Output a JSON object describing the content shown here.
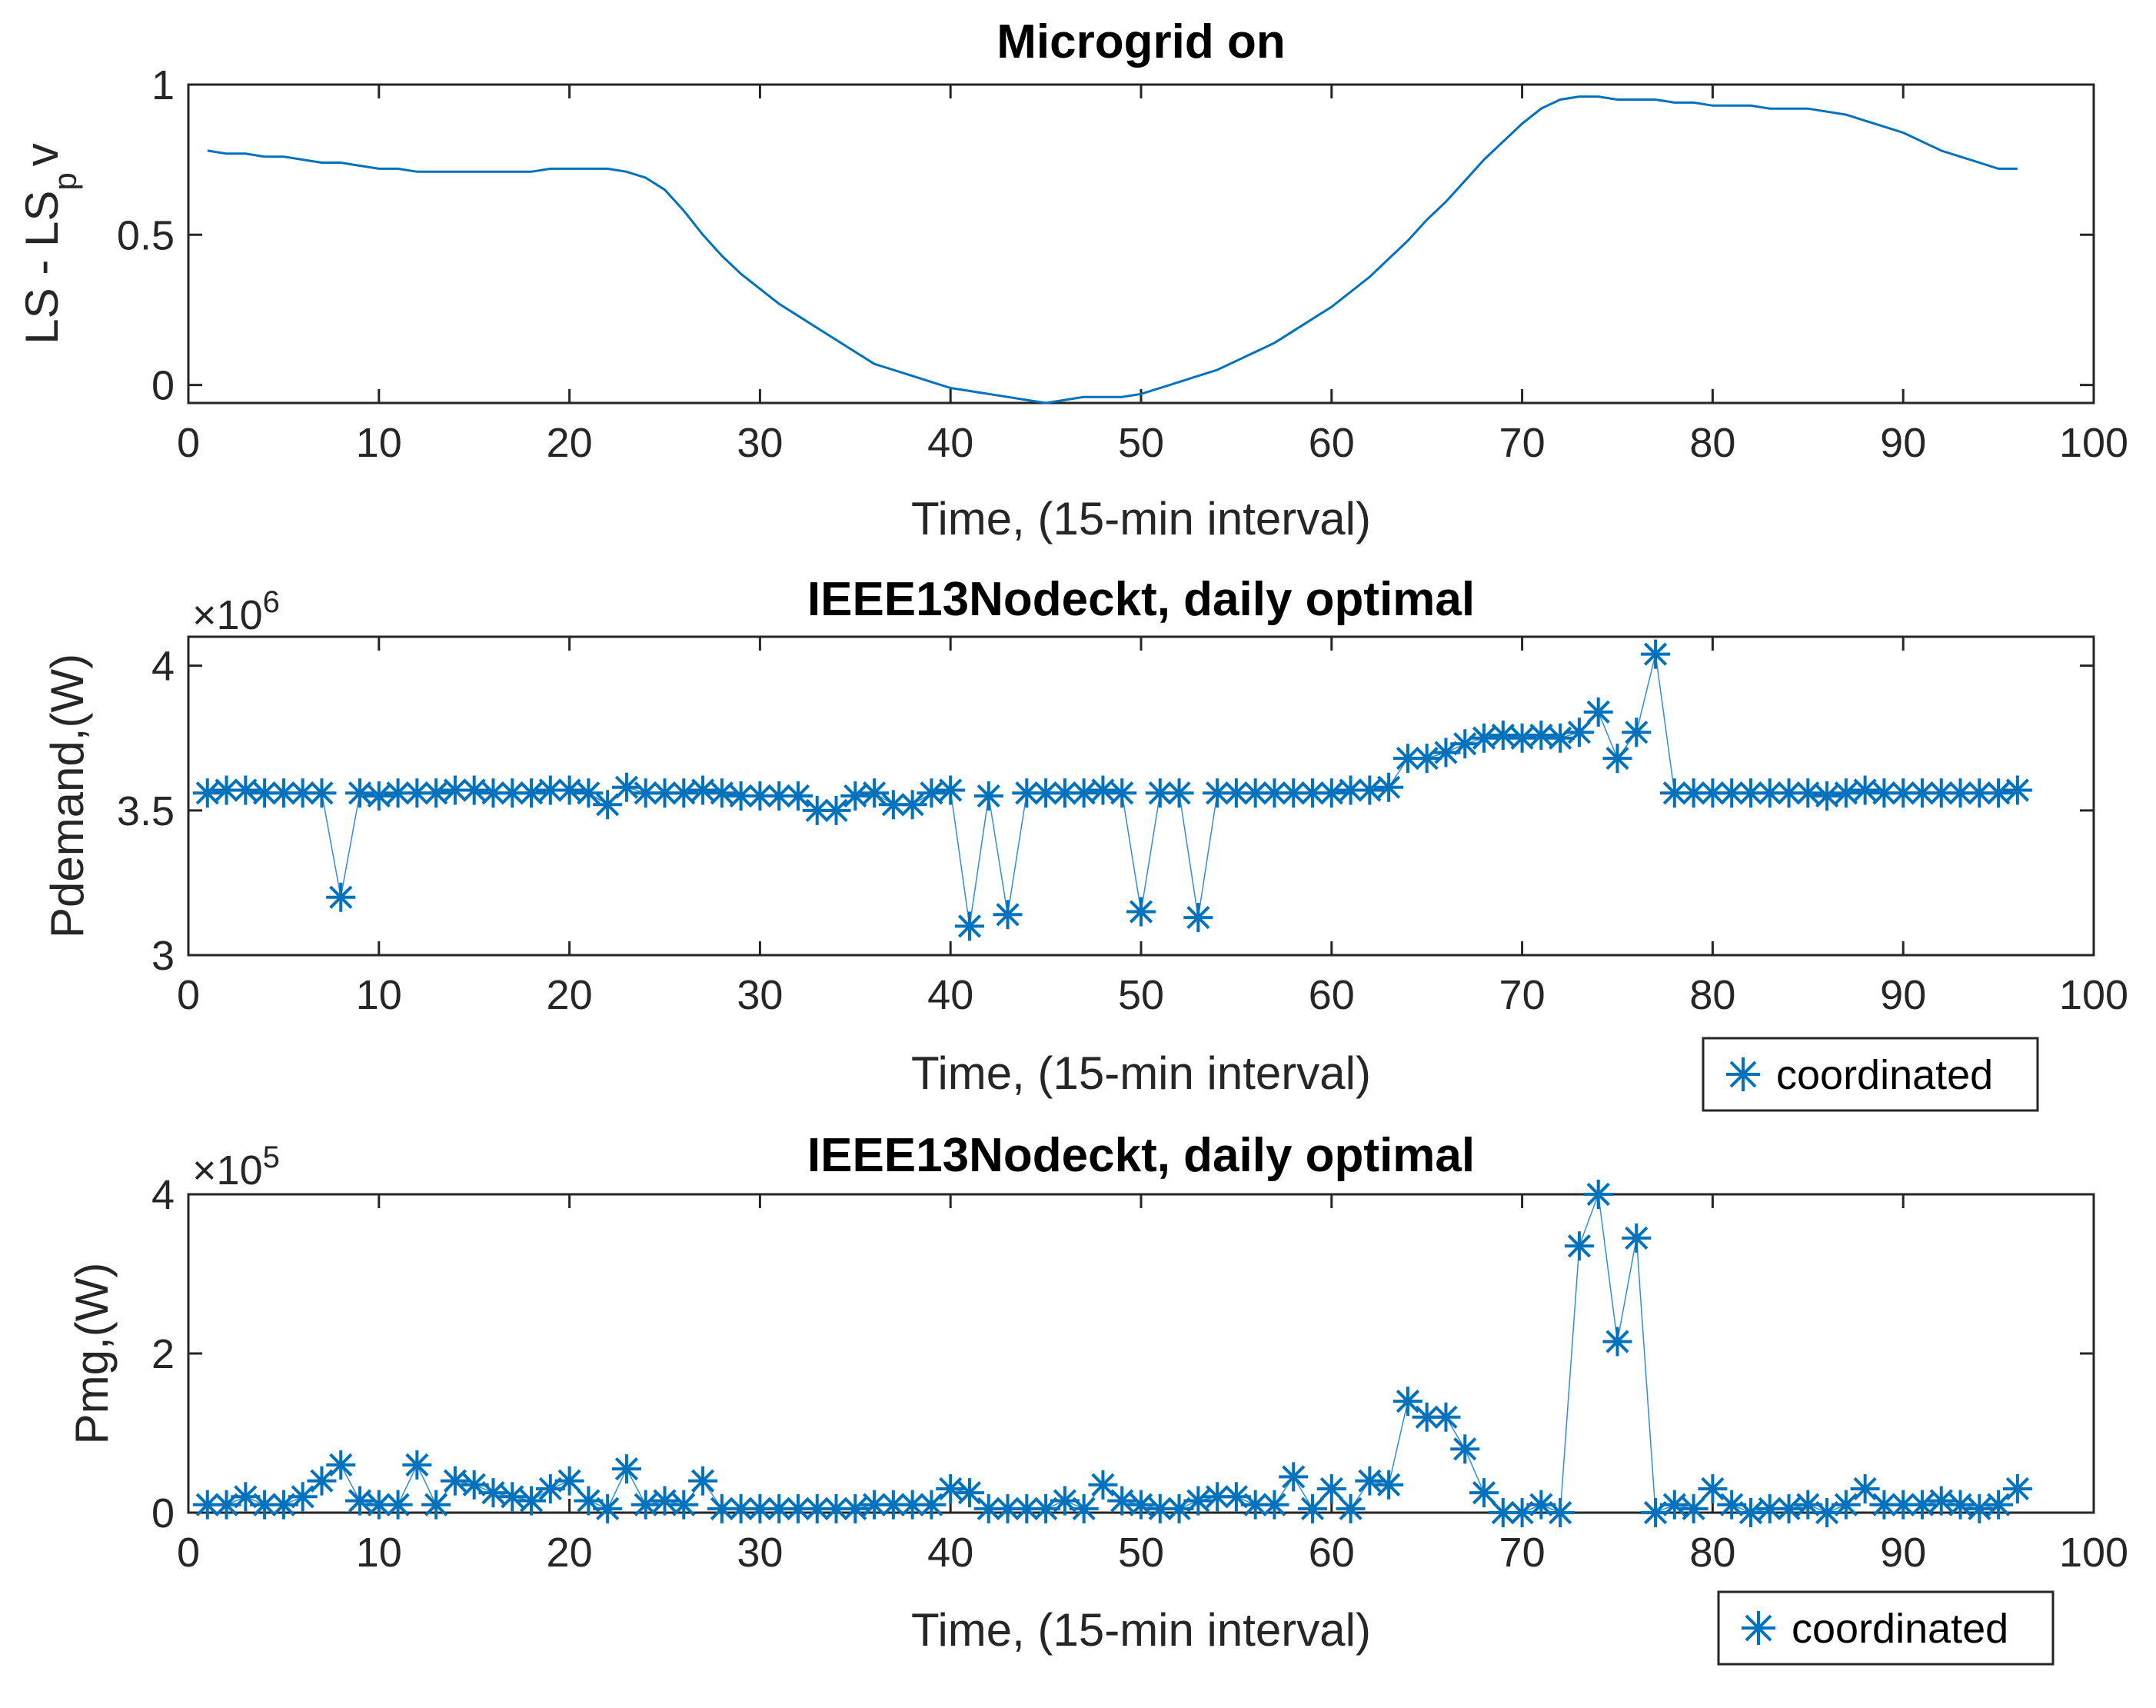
{
  "colors": {
    "series": "#0072BD",
    "axis": "#262626"
  },
  "chart_data": [
    {
      "type": "line",
      "title": "Microgrid on",
      "xlabel": "Time, (15-min interval)",
      "ylabel": "LS - LS",
      "ylabel_sub": "p",
      "ylabel_tail": "v",
      "xlim": [
        0,
        100
      ],
      "ylim": [
        -0.06,
        1
      ],
      "xticks": [
        0,
        10,
        20,
        30,
        40,
        50,
        60,
        70,
        80,
        90,
        100
      ],
      "yticks": [
        0,
        0.5,
        1
      ],
      "xtick_labels": [
        "0",
        "10",
        "20",
        "30",
        "40",
        "50",
        "60",
        "70",
        "80",
        "90",
        "100"
      ],
      "ytick_labels": [
        "0",
        "0.5",
        "1"
      ],
      "series": [
        {
          "name": "LS-LSpv",
          "x": [
            1,
            2,
            3,
            4,
            5,
            6,
            7,
            8,
            9,
            10,
            11,
            12,
            13,
            14,
            15,
            16,
            17,
            18,
            19,
            20,
            21,
            22,
            23,
            24,
            25,
            26,
            27,
            28,
            29,
            30,
            31,
            32,
            33,
            34,
            35,
            36,
            37,
            38,
            39,
            40,
            41,
            42,
            43,
            44,
            45,
            46,
            47,
            48,
            49,
            50,
            51,
            52,
            53,
            54,
            55,
            56,
            57,
            58,
            59,
            60,
            61,
            62,
            63,
            64,
            65,
            66,
            67,
            68,
            69,
            70,
            71,
            72,
            73,
            74,
            75,
            76,
            77,
            78,
            79,
            80,
            81,
            82,
            83,
            84,
            85,
            86,
            87,
            88,
            89,
            90,
            91,
            92,
            93,
            94,
            95,
            96
          ],
          "y": [
            0.78,
            0.77,
            0.77,
            0.76,
            0.76,
            0.75,
            0.74,
            0.74,
            0.73,
            0.72,
            0.72,
            0.71,
            0.71,
            0.71,
            0.71,
            0.71,
            0.71,
            0.71,
            0.72,
            0.72,
            0.72,
            0.72,
            0.71,
            0.69,
            0.65,
            0.58,
            0.5,
            0.43,
            0.37,
            0.32,
            0.27,
            0.23,
            0.19,
            0.15,
            0.11,
            0.07,
            0.05,
            0.03,
            0.01,
            -0.01,
            -0.02,
            -0.03,
            -0.04,
            -0.05,
            -0.06,
            -0.05,
            -0.04,
            -0.04,
            -0.04,
            -0.03,
            -0.01,
            0.01,
            0.03,
            0.05,
            0.08,
            0.11,
            0.14,
            0.18,
            0.22,
            0.26,
            0.31,
            0.36,
            0.42,
            0.48,
            0.55,
            0.61,
            0.68,
            0.75,
            0.81,
            0.87,
            0.92,
            0.95,
            0.96,
            0.96,
            0.95,
            0.95,
            0.95,
            0.94,
            0.94,
            0.93,
            0.93,
            0.93,
            0.92,
            0.92,
            0.92,
            0.91,
            0.9,
            0.88,
            0.86,
            0.84,
            0.81,
            0.78,
            0.76,
            0.74,
            0.72,
            0.72
          ]
        }
      ]
    },
    {
      "type": "scatter",
      "title": "IEEE13Nodeckt, daily optimal",
      "xlabel": "Time, (15-min interval)",
      "ylabel": "Pdemand,(W)",
      "scale_label": "×10",
      "scale_exp": "6",
      "xlim": [
        0,
        100
      ],
      "ylim": [
        3,
        4.1
      ],
      "xticks": [
        0,
        10,
        20,
        30,
        40,
        50,
        60,
        70,
        80,
        90,
        100
      ],
      "yticks": [
        3,
        3.5,
        4
      ],
      "xtick_labels": [
        "0",
        "10",
        "20",
        "30",
        "40",
        "50",
        "60",
        "70",
        "80",
        "90",
        "100"
      ],
      "ytick_labels": [
        "3",
        "3.5",
        "4"
      ],
      "legend": {
        "label": "coordinated",
        "position": "bottom-right-outside"
      },
      "series": [
        {
          "name": "coordinated",
          "x": [
            1,
            2,
            3,
            4,
            5,
            6,
            7,
            8,
            9,
            10,
            11,
            12,
            13,
            14,
            15,
            16,
            17,
            18,
            19,
            20,
            21,
            22,
            23,
            24,
            25,
            26,
            27,
            28,
            29,
            30,
            31,
            32,
            33,
            34,
            35,
            36,
            37,
            38,
            39,
            40,
            41,
            42,
            43,
            44,
            45,
            46,
            47,
            48,
            49,
            50,
            51,
            52,
            53,
            54,
            55,
            56,
            57,
            58,
            59,
            60,
            61,
            62,
            63,
            64,
            65,
            66,
            67,
            68,
            69,
            70,
            71,
            72,
            73,
            74,
            75,
            76,
            77,
            78,
            79,
            80,
            81,
            82,
            83,
            84,
            85,
            86,
            87,
            88,
            89,
            90,
            91,
            92,
            93,
            94,
            95,
            96
          ],
          "y": [
            3.56,
            3.57,
            3.57,
            3.56,
            3.56,
            3.56,
            3.56,
            3.2,
            3.56,
            3.55,
            3.56,
            3.56,
            3.56,
            3.57,
            3.57,
            3.56,
            3.56,
            3.56,
            3.57,
            3.57,
            3.56,
            3.52,
            3.58,
            3.56,
            3.56,
            3.56,
            3.57,
            3.56,
            3.55,
            3.55,
            3.55,
            3.55,
            3.5,
            3.5,
            3.55,
            3.56,
            3.52,
            3.52,
            3.56,
            3.57,
            3.1,
            3.55,
            3.14,
            3.56,
            3.56,
            3.56,
            3.56,
            3.57,
            3.56,
            3.15,
            3.56,
            3.56,
            3.13,
            3.56,
            3.56,
            3.56,
            3.56,
            3.56,
            3.56,
            3.56,
            3.57,
            3.57,
            3.58,
            3.68,
            3.68,
            3.7,
            3.73,
            3.75,
            3.76,
            3.75,
            3.76,
            3.75,
            3.77,
            3.84,
            3.68,
            3.77,
            4.04,
            3.56,
            3.56,
            3.56,
            3.56,
            3.56,
            3.56,
            3.56,
            3.56,
            3.55,
            3.56,
            3.57,
            3.56,
            3.56,
            3.56,
            3.56,
            3.56,
            3.56,
            3.56,
            3.57
          ]
        }
      ]
    },
    {
      "type": "scatter",
      "title": "IEEE13Nodeckt, daily optimal",
      "xlabel": "Time, (15-min interval)",
      "ylabel": "Pmg,(W)",
      "scale_label": "×10",
      "scale_exp": "5",
      "xlim": [
        0,
        100
      ],
      "ylim": [
        0,
        4
      ],
      "xticks": [
        0,
        10,
        20,
        30,
        40,
        50,
        60,
        70,
        80,
        90,
        100
      ],
      "yticks": [
        0,
        2,
        4
      ],
      "xtick_labels": [
        "0",
        "10",
        "20",
        "30",
        "40",
        "50",
        "60",
        "70",
        "80",
        "90",
        "100"
      ],
      "ytick_labels": [
        "0",
        "2",
        "4"
      ],
      "legend": {
        "label": "coordinated",
        "position": "bottom-right-outside"
      },
      "series": [
        {
          "name": "coordinated",
          "x": [
            1,
            2,
            3,
            4,
            5,
            6,
            7,
            8,
            9,
            10,
            11,
            12,
            13,
            14,
            15,
            16,
            17,
            18,
            19,
            20,
            21,
            22,
            23,
            24,
            25,
            26,
            27,
            28,
            29,
            30,
            31,
            32,
            33,
            34,
            35,
            36,
            37,
            38,
            39,
            40,
            41,
            42,
            43,
            44,
            45,
            46,
            47,
            48,
            49,
            50,
            51,
            52,
            53,
            54,
            55,
            56,
            57,
            58,
            59,
            60,
            61,
            62,
            63,
            64,
            65,
            66,
            67,
            68,
            69,
            70,
            71,
            72,
            73,
            74,
            75,
            76,
            77,
            78,
            79,
            80,
            81,
            82,
            83,
            84,
            85,
            86,
            87,
            88,
            89,
            90,
            91,
            92,
            93,
            94,
            95,
            96
          ],
          "y": [
            0.1,
            0.1,
            0.2,
            0.1,
            0.1,
            0.2,
            0.4,
            0.6,
            0.15,
            0.1,
            0.1,
            0.6,
            0.1,
            0.4,
            0.35,
            0.25,
            0.2,
            0.15,
            0.3,
            0.4,
            0.15,
            0.05,
            0.55,
            0.1,
            0.15,
            0.1,
            0.4,
            0.05,
            0.05,
            0.05,
            0.05,
            0.05,
            0.05,
            0.05,
            0.05,
            0.1,
            0.1,
            0.1,
            0.1,
            0.3,
            0.25,
            0.05,
            0.05,
            0.05,
            0.05,
            0.15,
            0.05,
            0.35,
            0.15,
            0.1,
            0.05,
            0.05,
            0.15,
            0.2,
            0.2,
            0.1,
            0.1,
            0.45,
            0.05,
            0.3,
            0.05,
            0.4,
            0.35,
            1.4,
            1.2,
            1.2,
            0.8,
            0.25,
            0,
            0,
            0.1,
            0,
            3.35,
            4.0,
            2.15,
            3.45,
            0,
            0.1,
            0.05,
            0.3,
            0.1,
            0,
            0.05,
            0.05,
            0.1,
            0,
            0.1,
            0.3,
            0.1,
            0.1,
            0.1,
            0.15,
            0.1,
            0.05,
            0.1,
            0.3
          ]
        }
      ]
    }
  ]
}
